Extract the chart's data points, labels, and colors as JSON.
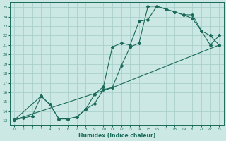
{
  "title": "",
  "xlabel": "Humidex (Indice chaleur)",
  "xlim": [
    -0.5,
    23.5
  ],
  "ylim": [
    12.5,
    25.5
  ],
  "xticks": [
    0,
    1,
    2,
    3,
    4,
    5,
    6,
    7,
    8,
    9,
    10,
    11,
    12,
    13,
    14,
    15,
    16,
    17,
    18,
    19,
    20,
    21,
    22,
    23
  ],
  "yticks": [
    13,
    14,
    15,
    16,
    17,
    18,
    19,
    20,
    21,
    22,
    23,
    24,
    25
  ],
  "bg_color": "#cce8e4",
  "grid_color": "#aacfcb",
  "line_color": "#1a6b5a",
  "curve1_x": [
    0,
    1,
    2,
    3,
    4,
    5,
    6,
    7,
    8,
    9,
    10,
    11,
    12,
    13,
    14,
    15,
    16,
    17,
    18,
    19,
    20,
    21,
    22,
    23
  ],
  "curve1_y": [
    13.1,
    13.3,
    13.5,
    15.6,
    14.7,
    13.2,
    13.2,
    13.4,
    14.2,
    14.8,
    16.3,
    16.5,
    18.8,
    20.8,
    21.2,
    25.1,
    25.1,
    24.8,
    24.5,
    24.2,
    23.8,
    22.5,
    22.0,
    21.0
  ],
  "curve2_x": [
    0,
    3,
    4,
    5,
    6,
    7,
    8,
    9,
    10,
    11,
    12,
    13,
    14,
    15,
    16,
    17,
    18,
    19,
    20,
    21,
    22,
    23
  ],
  "curve2_y": [
    13.1,
    15.6,
    14.7,
    13.2,
    13.2,
    13.4,
    14.2,
    15.8,
    16.6,
    20.8,
    21.2,
    21.0,
    23.5,
    23.7,
    25.1,
    24.8,
    24.5,
    24.2,
    24.2,
    22.5,
    21.0,
    22.0
  ],
  "curve3_x": [
    0,
    11,
    23
  ],
  "curve3_y": [
    13.1,
    16.5,
    21.0
  ]
}
